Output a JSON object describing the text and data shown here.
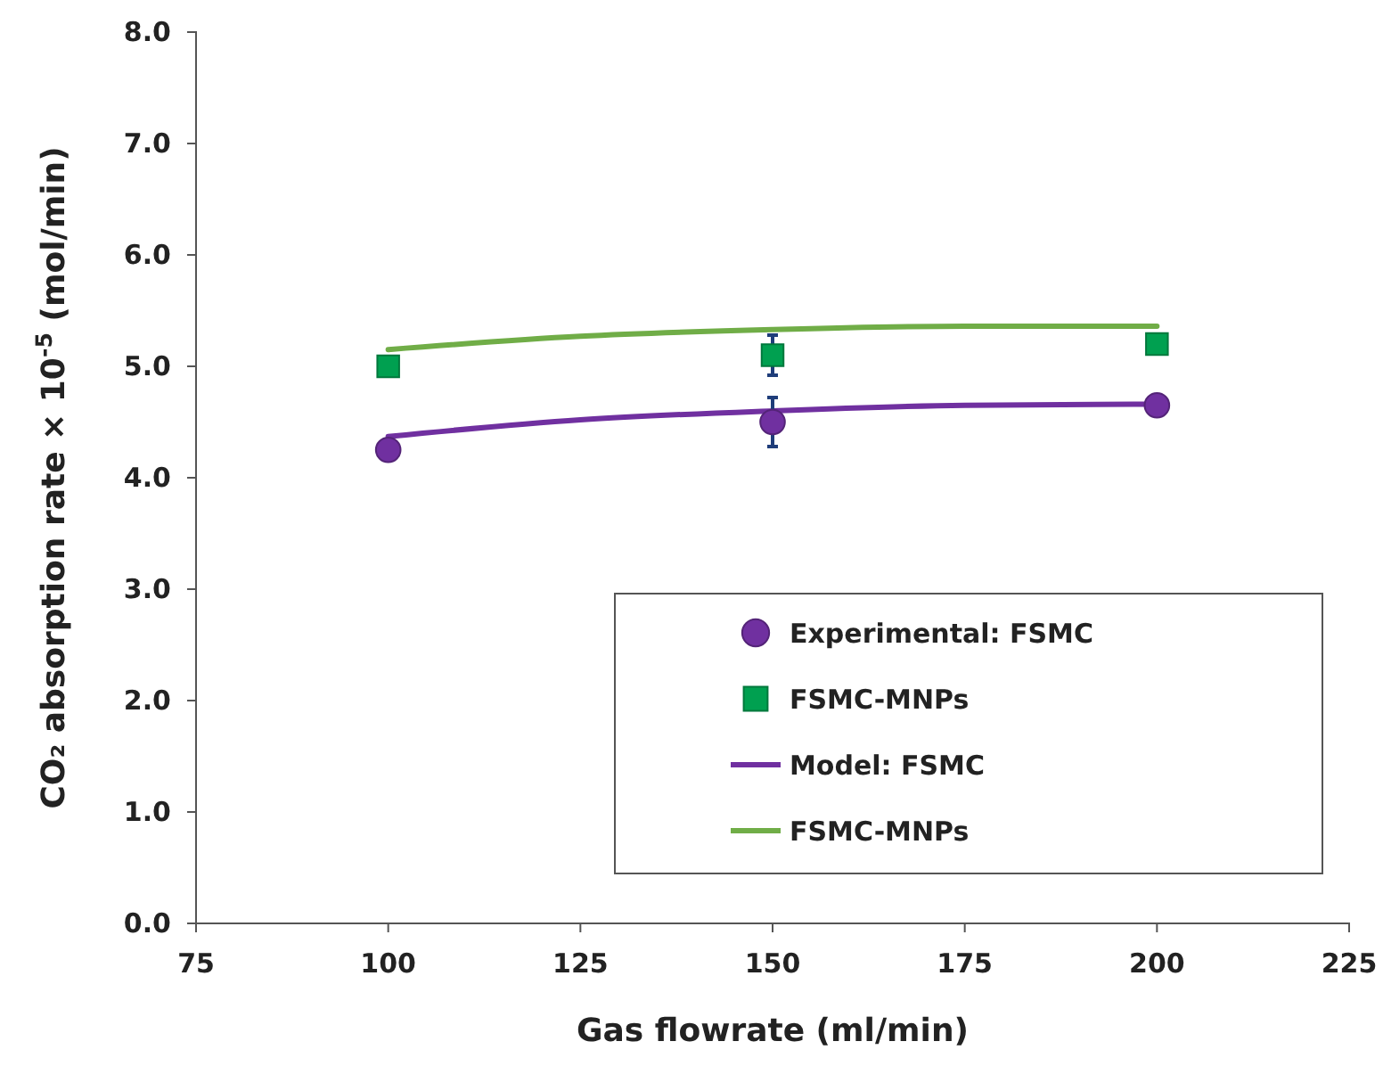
{
  "chart_data": {
    "type": "scatter",
    "xlabel": "Gas flowrate (ml/min)",
    "ylabel": "CO₂ absorption rate × 10$^{-5}$ (mol/min)",
    "xlim": [
      75,
      225
    ],
    "xticks": [
      75,
      100,
      125,
      150,
      175,
      200,
      225
    ],
    "ylim": [
      0,
      8
    ],
    "yticks": [
      {
        "value": 0,
        "label": "0.0"
      },
      {
        "value": 1,
        "label": "1.0"
      },
      {
        "value": 2,
        "label": "2.0"
      },
      {
        "value": 3,
        "label": "3.0"
      },
      {
        "value": 4,
        "label": "4.0"
      },
      {
        "value": 5,
        "label": "5.0"
      },
      {
        "value": 6,
        "label": "6.0"
      },
      {
        "value": 7,
        "label": "7.0"
      },
      {
        "value": 8,
        "label": "8.0"
      }
    ],
    "grid": false,
    "legend": "bottom right",
    "series": [
      {
        "name": "Experimental: FSMC",
        "type": "scatter",
        "marker": "circle",
        "color": "#7030a0",
        "x": [
          100,
          150,
          200
        ],
        "values": [
          4.25,
          4.5,
          4.65
        ],
        "errors": [
          null,
          0.22,
          null
        ]
      },
      {
        "name": "FSMC-MNPs",
        "type": "scatter",
        "marker": "square",
        "color": "#00a050",
        "x": [
          100,
          150,
          200
        ],
        "values": [
          5.0,
          5.1,
          5.2
        ],
        "errors": [
          null,
          0.18,
          null
        ]
      },
      {
        "name": "Model: FSMC",
        "type": "line",
        "marker": "none",
        "line_style": "solid",
        "color": "#7030a0",
        "x": [
          100,
          125,
          150,
          175,
          200
        ],
        "values": [
          4.37,
          4.52,
          4.6,
          4.65,
          4.66
        ]
      },
      {
        "name": "FSMC-MNPs",
        "type": "line",
        "marker": "none",
        "line_style": "solid",
        "color": "#70ad47",
        "x": [
          100,
          125,
          150,
          175,
          200
        ],
        "values": [
          5.15,
          5.27,
          5.33,
          5.36,
          5.36
        ]
      }
    ]
  }
}
